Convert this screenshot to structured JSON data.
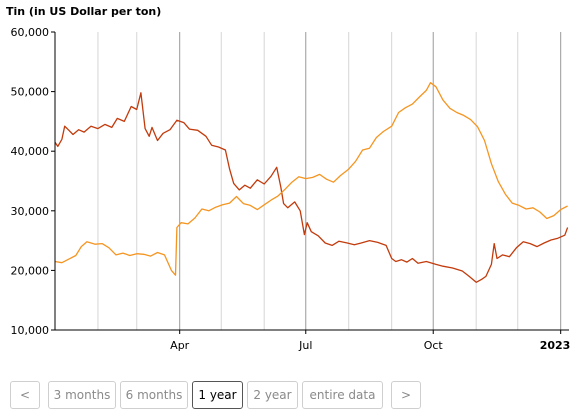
{
  "chart_data": {
    "type": "line",
    "ylabel": "Tin (in US Dollar per ton)",
    "ylim": [
      10000,
      60000
    ],
    "yticks": [
      "10,000",
      "20,000",
      "30,000",
      "40,000",
      "50,000",
      "60,000"
    ],
    "xlim": [
      "2022-01-01",
      "2023-01-07"
    ],
    "xticks": [
      {
        "date": "2022-04-01",
        "label": "Apr",
        "bold": false
      },
      {
        "date": "2022-07-01",
        "label": "Jul",
        "bold": false
      },
      {
        "date": "2022-10-01",
        "label": "Oct",
        "bold": false
      },
      {
        "date": "2023-01-01",
        "label": "2023",
        "bold": true
      }
    ],
    "grid": true,
    "series": [
      {
        "color": "#c23b0c",
        "points": [
          [
            "2022-01-01",
            41500
          ],
          [
            "2022-01-03",
            40800
          ],
          [
            "2022-01-06",
            42000
          ],
          [
            "2022-01-08",
            44200
          ],
          [
            "2022-01-11",
            43500
          ],
          [
            "2022-01-14",
            42800
          ],
          [
            "2022-01-18",
            43600
          ],
          [
            "2022-01-22",
            43200
          ],
          [
            "2022-01-27",
            44200
          ],
          [
            "2022-02-01",
            43800
          ],
          [
            "2022-02-06",
            44500
          ],
          [
            "2022-02-11",
            44000
          ],
          [
            "2022-02-15",
            45500
          ],
          [
            "2022-02-20",
            45000
          ],
          [
            "2022-02-25",
            47500
          ],
          [
            "2022-03-01",
            47000
          ],
          [
            "2022-03-04",
            49800
          ],
          [
            "2022-03-07",
            43800
          ],
          [
            "2022-03-10",
            42500
          ],
          [
            "2022-03-12",
            44000
          ],
          [
            "2022-03-16",
            41800
          ],
          [
            "2022-03-20",
            43000
          ],
          [
            "2022-03-25",
            43600
          ],
          [
            "2022-03-30",
            45200
          ],
          [
            "2022-04-04",
            44800
          ],
          [
            "2022-04-08",
            43700
          ],
          [
            "2022-04-14",
            43500
          ],
          [
            "2022-04-20",
            42500
          ],
          [
            "2022-04-24",
            41000
          ],
          [
            "2022-04-29",
            40700
          ],
          [
            "2022-05-04",
            40200
          ],
          [
            "2022-05-07",
            37000
          ],
          [
            "2022-05-10",
            34600
          ],
          [
            "2022-05-14",
            33500
          ],
          [
            "2022-05-18",
            34300
          ],
          [
            "2022-05-22",
            33800
          ],
          [
            "2022-05-27",
            35200
          ],
          [
            "2022-06-01",
            34500
          ],
          [
            "2022-06-06",
            35800
          ],
          [
            "2022-06-10",
            37300
          ],
          [
            "2022-06-13",
            34000
          ],
          [
            "2022-06-15",
            31200
          ],
          [
            "2022-06-18",
            30500
          ],
          [
            "2022-06-23",
            31500
          ],
          [
            "2022-06-27",
            30000
          ],
          [
            "2022-06-30",
            26000
          ],
          [
            "2022-07-02",
            28000
          ],
          [
            "2022-07-05",
            26500
          ],
          [
            "2022-07-10",
            25800
          ],
          [
            "2022-07-15",
            24600
          ],
          [
            "2022-07-20",
            24200
          ],
          [
            "2022-07-25",
            24900
          ],
          [
            "2022-07-31",
            24600
          ],
          [
            "2022-08-05",
            24300
          ],
          [
            "2022-08-10",
            24600
          ],
          [
            "2022-08-16",
            25000
          ],
          [
            "2022-08-22",
            24700
          ],
          [
            "2022-08-28",
            24200
          ],
          [
            "2022-09-01",
            22000
          ],
          [
            "2022-09-04",
            21500
          ],
          [
            "2022-09-08",
            21800
          ],
          [
            "2022-09-12",
            21400
          ],
          [
            "2022-09-16",
            22000
          ],
          [
            "2022-09-20",
            21200
          ],
          [
            "2022-09-26",
            21500
          ],
          [
            "2022-10-03",
            21000
          ],
          [
            "2022-10-08",
            20700
          ],
          [
            "2022-10-15",
            20400
          ],
          [
            "2022-10-22",
            19900
          ],
          [
            "2022-10-27",
            19000
          ],
          [
            "2022-11-01",
            18000
          ],
          [
            "2022-11-05",
            18500
          ],
          [
            "2022-11-08",
            19000
          ],
          [
            "2022-11-12",
            21000
          ],
          [
            "2022-11-14",
            24500
          ],
          [
            "2022-11-16",
            22000
          ],
          [
            "2022-11-20",
            22600
          ],
          [
            "2022-11-25",
            22300
          ],
          [
            "2022-11-30",
            23800
          ],
          [
            "2022-12-05",
            24800
          ],
          [
            "2022-12-10",
            24500
          ],
          [
            "2022-12-15",
            24000
          ],
          [
            "2022-12-20",
            24600
          ],
          [
            "2022-12-25",
            25100
          ],
          [
            "2022-12-30",
            25400
          ],
          [
            "2023-01-04",
            25900
          ],
          [
            "2023-01-06",
            27200
          ]
        ]
      },
      {
        "color": "#f59521",
        "points": [
          [
            "2022-01-01",
            21500
          ],
          [
            "2022-01-06",
            21300
          ],
          [
            "2022-01-11",
            21900
          ],
          [
            "2022-01-16",
            22500
          ],
          [
            "2022-01-20",
            24000
          ],
          [
            "2022-01-24",
            24800
          ],
          [
            "2022-01-30",
            24400
          ],
          [
            "2022-02-04",
            24500
          ],
          [
            "2022-02-09",
            23800
          ],
          [
            "2022-02-14",
            22600
          ],
          [
            "2022-02-19",
            22900
          ],
          [
            "2022-02-24",
            22500
          ],
          [
            "2022-03-01",
            22800
          ],
          [
            "2022-03-06",
            22700
          ],
          [
            "2022-03-11",
            22400
          ],
          [
            "2022-03-16",
            23000
          ],
          [
            "2022-03-21",
            22600
          ],
          [
            "2022-03-26",
            20000
          ],
          [
            "2022-03-29",
            19200
          ],
          [
            "2022-03-30",
            27200
          ],
          [
            "2022-04-02",
            28000
          ],
          [
            "2022-04-07",
            27800
          ],
          [
            "2022-04-12",
            28800
          ],
          [
            "2022-04-17",
            30300
          ],
          [
            "2022-04-22",
            30000
          ],
          [
            "2022-04-27",
            30600
          ],
          [
            "2022-05-02",
            31000
          ],
          [
            "2022-05-07",
            31300
          ],
          [
            "2022-05-12",
            32400
          ],
          [
            "2022-05-17",
            31200
          ],
          [
            "2022-05-22",
            30900
          ],
          [
            "2022-05-27",
            30200
          ],
          [
            "2022-06-01",
            31000
          ],
          [
            "2022-06-06",
            31800
          ],
          [
            "2022-06-11",
            32500
          ],
          [
            "2022-06-16",
            33600
          ],
          [
            "2022-06-21",
            34800
          ],
          [
            "2022-06-26",
            35700
          ],
          [
            "2022-07-01",
            35400
          ],
          [
            "2022-07-06",
            35600
          ],
          [
            "2022-07-11",
            36100
          ],
          [
            "2022-07-16",
            35300
          ],
          [
            "2022-07-21",
            34800
          ],
          [
            "2022-07-26",
            35900
          ],
          [
            "2022-08-01",
            37000
          ],
          [
            "2022-08-06",
            38300
          ],
          [
            "2022-08-11",
            40200
          ],
          [
            "2022-08-16",
            40500
          ],
          [
            "2022-08-21",
            42300
          ],
          [
            "2022-08-26",
            43300
          ],
          [
            "2022-09-01",
            44200
          ],
          [
            "2022-09-06",
            46500
          ],
          [
            "2022-09-11",
            47300
          ],
          [
            "2022-09-16",
            47900
          ],
          [
            "2022-09-21",
            49100
          ],
          [
            "2022-09-26",
            50200
          ],
          [
            "2022-09-29",
            51500
          ],
          [
            "2022-10-03",
            50800
          ],
          [
            "2022-10-08",
            48600
          ],
          [
            "2022-10-13",
            47200
          ],
          [
            "2022-10-18",
            46500
          ],
          [
            "2022-10-23",
            46000
          ],
          [
            "2022-10-28",
            45300
          ],
          [
            "2022-11-02",
            44100
          ],
          [
            "2022-11-07",
            41800
          ],
          [
            "2022-11-12",
            37900
          ],
          [
            "2022-11-17",
            34900
          ],
          [
            "2022-11-22",
            32800
          ],
          [
            "2022-11-27",
            31300
          ],
          [
            "2022-12-02",
            30900
          ],
          [
            "2022-12-07",
            30300
          ],
          [
            "2022-12-12",
            30500
          ],
          [
            "2022-12-17",
            29800
          ],
          [
            "2022-12-22",
            28700
          ],
          [
            "2022-12-27",
            29200
          ],
          [
            "2023-01-01",
            30200
          ],
          [
            "2023-01-06",
            30800
          ]
        ]
      }
    ]
  },
  "controls": {
    "prev": "<",
    "next": ">",
    "ranges": [
      {
        "label": "3 months",
        "active": false
      },
      {
        "label": "6 months",
        "active": false
      },
      {
        "label": "1 year",
        "active": true
      },
      {
        "label": "2 year",
        "active": false
      },
      {
        "label": "entire data",
        "active": false
      }
    ]
  }
}
